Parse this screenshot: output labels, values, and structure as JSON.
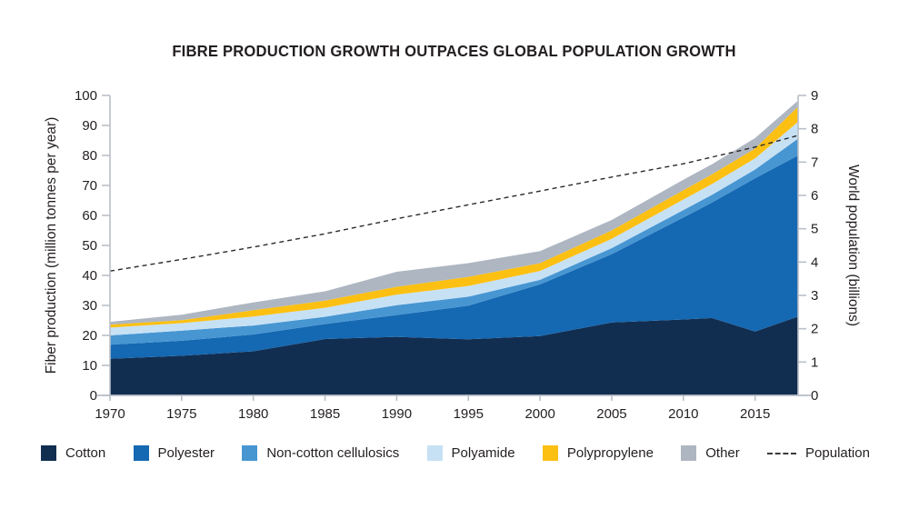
{
  "chart": {
    "title": "FIBRE PRODUCTION GROWTH OUTPACES GLOBAL POPULATION GROWTH",
    "y_left_label": "Fiber production (million tonnes per year)",
    "y_right_label": "World population (billions)"
  },
  "colors": {
    "cotton": "#112e51",
    "polyester": "#1568b2",
    "non_cotton_cellulosics": "#4796d2",
    "polyamide": "#c7e1f4",
    "polypropylene": "#fcc013",
    "other": "#aeb6c1",
    "population_line": "#2a2a2a",
    "axis": "#b9bfc9",
    "text": "#231f20"
  },
  "legend": {
    "items": [
      {
        "key": "cotton",
        "label": "Cotton",
        "type": "swatch",
        "color": "#112e51"
      },
      {
        "key": "polyester",
        "label": "Polyester",
        "type": "swatch",
        "color": "#1568b2"
      },
      {
        "key": "non-cotton-cellulosics",
        "label": "Non-cotton cellulosics",
        "type": "swatch",
        "color": "#4796d2"
      },
      {
        "key": "polyamide",
        "label": "Polyamide",
        "type": "swatch",
        "color": "#c7e1f4"
      },
      {
        "key": "polypropylene",
        "label": "Polypropylene",
        "type": "swatch",
        "color": "#fcc013"
      },
      {
        "key": "other",
        "label": "Other",
        "type": "swatch",
        "color": "#aeb6c1"
      },
      {
        "key": "population",
        "label": "Population",
        "type": "dash",
        "color": "#3a3a3a"
      }
    ]
  },
  "chart_data": {
    "type": "area",
    "subtype": "stacked-area-with-line",
    "title": "FIBRE PRODUCTION GROWTH OUTPACES GLOBAL POPULATION GROWTH",
    "xlabel": "",
    "ylabel_left": "Fiber production (million tonnes per year)",
    "ylabel_right": "World population (billions)",
    "x_range": [
      1970,
      2018
    ],
    "y_left_range": [
      0,
      100
    ],
    "y_right_range": [
      0,
      9
    ],
    "grid": false,
    "legend_position": "bottom",
    "x_ticks": [
      1970,
      1975,
      1980,
      1985,
      1990,
      1995,
      2000,
      2005,
      2010,
      2015
    ],
    "y_left_ticks": [
      0,
      10,
      20,
      30,
      40,
      50,
      60,
      70,
      80,
      90,
      100
    ],
    "y_right_ticks": [
      0,
      1,
      2,
      3,
      4,
      5,
      6,
      7,
      8,
      9
    ],
    "x": [
      1970,
      1975,
      1980,
      1985,
      1990,
      1995,
      2000,
      2005,
      2010,
      2012,
      2015,
      2018
    ],
    "series": [
      {
        "name": "Cotton",
        "key": "cotton",
        "color": "#112e51",
        "values": [
          12.2,
          13.2,
          14.7,
          18.8,
          19.5,
          18.7,
          19.8,
          24.3,
          25.3,
          25.8,
          21.3,
          26.3
        ]
      },
      {
        "name": "Polyester",
        "key": "polyester",
        "color": "#1568b2",
        "values": [
          4.7,
          5.0,
          5.6,
          5.0,
          7.3,
          11.2,
          17.2,
          22.8,
          34.0,
          38.5,
          51.1,
          53.7
        ]
      },
      {
        "name": "Non-cotton cellulosics",
        "key": "non-cotton-cellulosics",
        "color": "#4796d2",
        "values": [
          3.1,
          3.4,
          3.0,
          2.4,
          3.3,
          3.0,
          1.5,
          2.0,
          2.5,
          2.6,
          2.9,
          5.6
        ]
      },
      {
        "name": "Polyamide",
        "key": "polyamide",
        "color": "#c7e1f4",
        "values": [
          2.6,
          2.5,
          3.0,
          3.0,
          3.5,
          3.6,
          3.0,
          3.1,
          3.5,
          3.6,
          3.7,
          5.6
        ]
      },
      {
        "name": "Polypropylene",
        "key": "polypropylene",
        "color": "#fcc013",
        "values": [
          1.0,
          1.0,
          2.1,
          2.4,
          2.6,
          3.0,
          2.6,
          2.8,
          3.1,
          3.2,
          3.3,
          5.1
        ]
      },
      {
        "name": "Other",
        "key": "other",
        "color": "#aeb6c1",
        "values": [
          0.9,
          1.8,
          2.6,
          3.1,
          5.0,
          4.6,
          4.0,
          3.5,
          3.5,
          3.4,
          3.5,
          2.0
        ]
      }
    ],
    "line_series": {
      "name": "Population",
      "key": "population",
      "axis": "right",
      "color": "#2a2a2a",
      "style": "dashed",
      "values": [
        3.73,
        4.08,
        4.45,
        4.85,
        5.3,
        5.72,
        6.13,
        6.55,
        6.95,
        7.15,
        7.45,
        7.8
      ]
    }
  }
}
